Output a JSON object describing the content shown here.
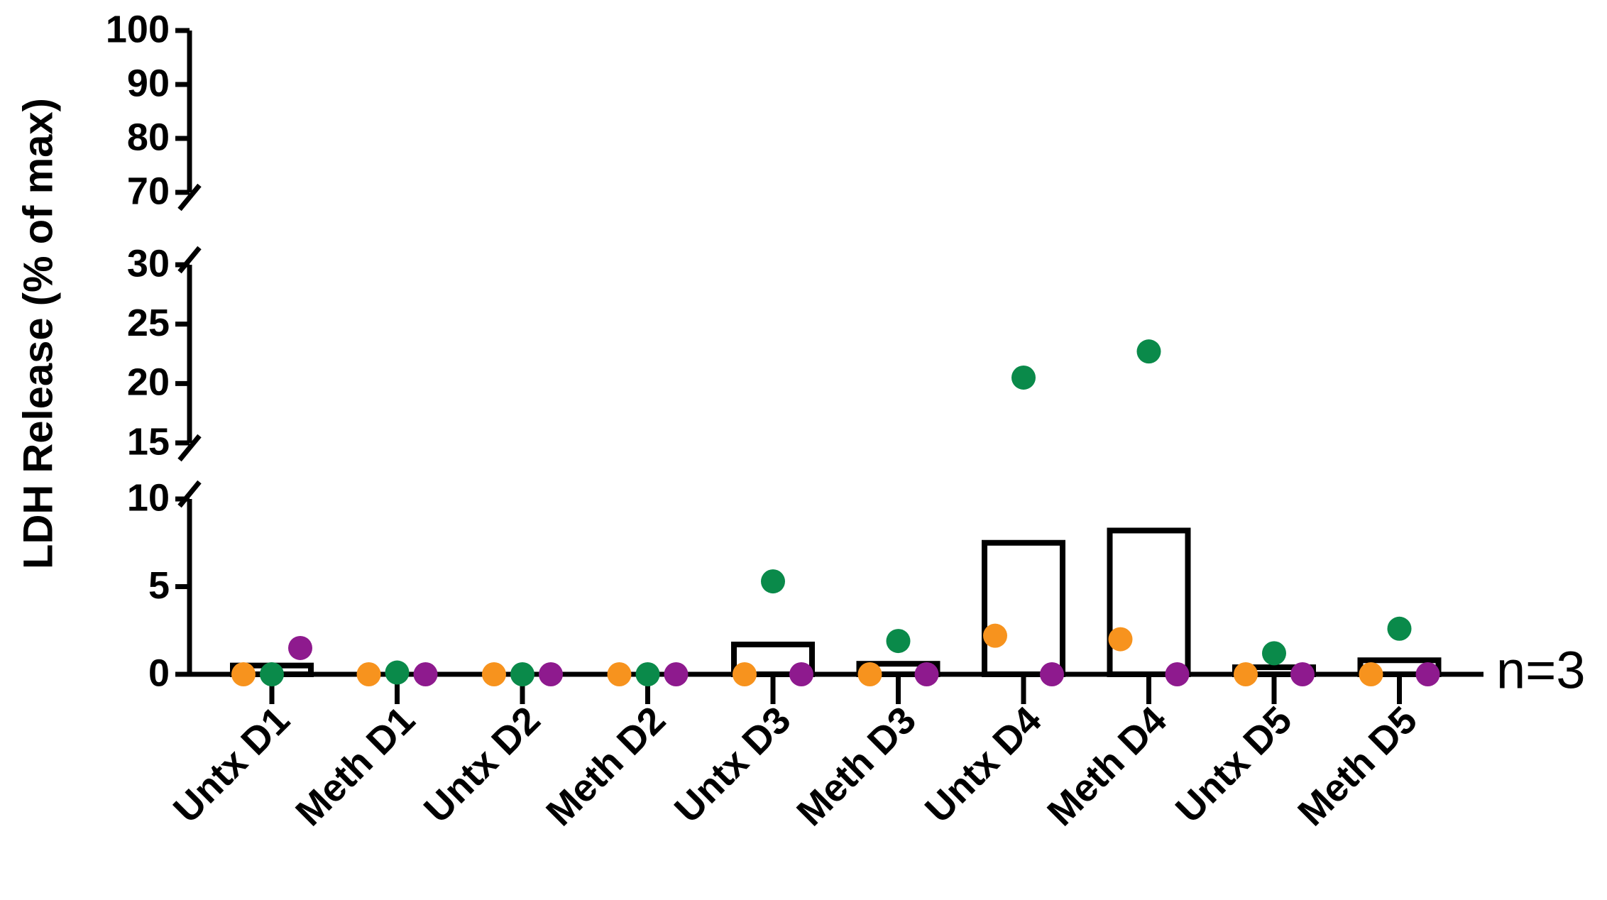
{
  "chart_data": {
    "type": "bar-dot",
    "y_label": "LDH Release (% of max)",
    "annotation": "n=3",
    "categories": [
      "Untx D1",
      "Meth D1",
      "Untx D2",
      "Meth D2",
      "Untx D3",
      "Meth D3",
      "Untx D4",
      "Meth D4",
      "Untx D5",
      "Meth D5"
    ],
    "values": [
      0.5,
      0,
      0,
      0,
      1.7,
      0.6,
      7.5,
      8.2,
      0.4,
      0.8
    ],
    "series": [
      {
        "color": "#f7931e",
        "values": [
          0,
          0,
          0,
          0,
          0,
          0,
          2.2,
          2.0,
          0,
          0
        ]
      },
      {
        "color": "#0a8a4a",
        "values": [
          0,
          0.1,
          0,
          0,
          5.3,
          1.9,
          20.5,
          22.7,
          1.2,
          2.6
        ]
      },
      {
        "color": "#8e1a8e",
        "values": [
          1.5,
          0,
          0,
          0,
          0,
          0,
          0,
          0,
          0,
          0
        ]
      }
    ],
    "ylim": [
      0,
      100
    ],
    "y_segments": [
      [
        0,
        10
      ],
      [
        15,
        30
      ],
      [
        70,
        100
      ]
    ],
    "yticks": [
      0,
      5,
      10,
      15,
      20,
      25,
      30,
      70,
      80,
      90,
      100
    ]
  }
}
